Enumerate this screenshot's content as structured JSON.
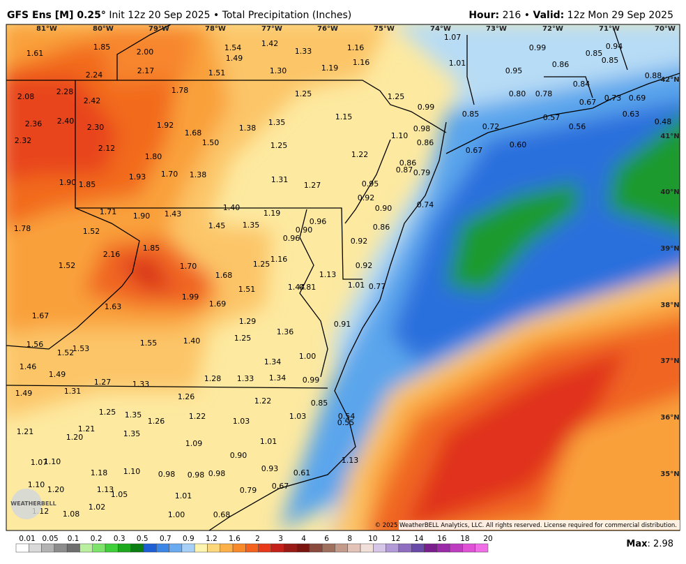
{
  "header": {
    "title_bold": "GFS Ens [M] 0.25",
    "title_degree": "°",
    "title_rest": " Init 12z 20 Sep 2025 • Total Precipitation (Inches)",
    "hour_label": "Hour:",
    "hour_value": " 216 • ",
    "valid_label": "Valid:",
    "valid_value": " 12z Mon 29 Sep 2025"
  },
  "longitudes": [
    "81°W",
    "80°W",
    "79°W",
    "78°W",
    "77°W",
    "76°W",
    "75°W",
    "74°W",
    "73°W",
    "72°W",
    "71°W",
    "70°W"
  ],
  "latitudes": [
    "42°N",
    "41°N",
    "40°N",
    "39°N",
    "38°N",
    "37°N",
    "36°N",
    "35°N"
  ],
  "map_labels": [
    "1.85",
    "2.00",
    "1.61",
    "1.54",
    "1.49",
    "1.42",
    "1.33",
    "1.16",
    "1.16",
    "1.07",
    "0.99",
    "0.85",
    "0.94",
    "0.85",
    "1.01",
    "0.86",
    "0.95",
    "0.88",
    "1.51",
    "1.30",
    "1.19",
    "2.24",
    "2.17",
    "1.78",
    "2.28",
    "2.08",
    "2.42",
    "1.25",
    "1.25",
    "0.80",
    "0.78",
    "0.84",
    "0.73",
    "0.69",
    "0.67",
    "0.63",
    "0.99",
    "0.85",
    "0.57",
    "0.48",
    "1.15",
    "1.35",
    "1.38",
    "1.92",
    "1.68",
    "2.36",
    "2.40",
    "2.30",
    "0.72",
    "0.56",
    "0.98",
    "1.10",
    "0.86",
    "1.50",
    "1.25",
    "2.32",
    "2.12",
    "0.67",
    "0.60",
    "1.22",
    "1.80",
    "0.86",
    "0.87",
    "0.79",
    "1.70",
    "1.38",
    "1.93",
    "1.31",
    "1.27",
    "1.90",
    "1.85",
    "0.95",
    "0.92",
    "0.74",
    "0.90",
    "1.40",
    "1.19",
    "1.71",
    "1.90",
    "1.43",
    "1.45",
    "1.35",
    "0.96",
    "0.90",
    "1.78",
    "1.52",
    "0.86",
    "0.96",
    "0.92",
    "1.85",
    "2.16",
    "1.16",
    "1.25",
    "1.52",
    "1.70",
    "0.92",
    "1.13",
    "1.68",
    "1.44",
    "0.81",
    "1.51",
    "1.01",
    "0.77",
    "1.99",
    "1.69",
    "1.63",
    "1.67",
    "1.29",
    "0.91",
    "1.36",
    "1.25",
    "1.40",
    "1.55",
    "1.56",
    "1.53",
    "1.52",
    "1.00",
    "1.34",
    "1.46",
    "1.49",
    "1.28",
    "1.33",
    "1.34",
    "0.99",
    "1.27",
    "1.33",
    "1.31",
    "1.49",
    "1.26",
    "1.22",
    "0.85",
    "1.25",
    "1.35",
    "1.22",
    "1.03",
    "1.03",
    "0.54",
    "0.55",
    "1.26",
    "1.21",
    "1.21",
    "1.35",
    "1.20",
    "1.09",
    "1.01",
    "0.90",
    "1.07",
    "1.10",
    "1.13",
    "0.93",
    "0.61",
    "1.18",
    "1.10",
    "0.98",
    "0.98",
    "0.98",
    "1.10",
    "1.20",
    "1.13",
    "1.05",
    "0.67",
    "0.79",
    "1.01",
    "1.02",
    "1.00",
    "0.68",
    "1.12",
    "1.08"
  ],
  "copyright": "© 2025 WeatherBELL Analytics, LLC. All rights reserved. License required for commercial distribution.",
  "logo": "WEATHERBELL",
  "colorbar_labels": [
    "0.01",
    "0.05",
    "0.1",
    "0.2",
    "0.3",
    "0.5",
    "0.7",
    "0.9",
    "1.2",
    "1.6",
    "2",
    "3",
    "4",
    "6",
    "8",
    "10",
    "12",
    "14",
    "16",
    "18",
    "20"
  ],
  "max_label": "Max",
  "max_value": ": 2.98"
}
